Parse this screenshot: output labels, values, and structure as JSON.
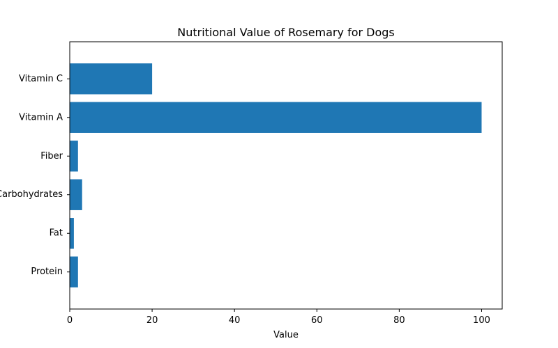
{
  "chart_data": {
    "type": "bar",
    "orientation": "horizontal",
    "title": "Nutritional Value of Rosemary for Dogs",
    "xlabel": "Value",
    "ylabel": "",
    "categories": [
      "Protein",
      "Fat",
      "Carbohydrates",
      "Fiber",
      "Vitamin A",
      "Vitamin C"
    ],
    "values": [
      2,
      1,
      3,
      2,
      100,
      20
    ],
    "xlim": [
      0,
      105
    ],
    "xticks": [
      0,
      20,
      40,
      60,
      80,
      100
    ],
    "grid": false,
    "bar_color": "#1f77b4"
  }
}
